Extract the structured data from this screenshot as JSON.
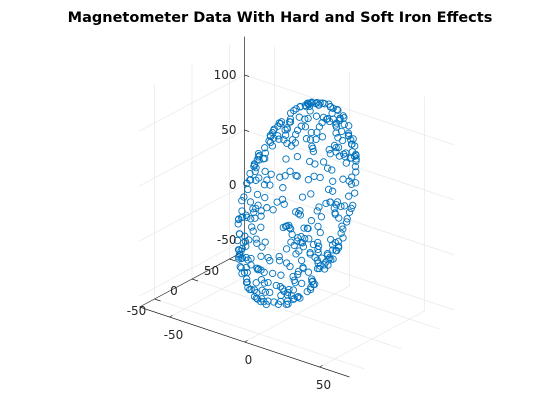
{
  "chart_data": {
    "type": "scatter",
    "projection": "3d",
    "title": "Magnetometer Data With Hard and Soft Iron Effects",
    "xlabel": "",
    "ylabel": "",
    "zlabel": "",
    "xlim": [
      -70,
      70
    ],
    "ylim": [
      -70,
      70
    ],
    "zlim": [
      -60,
      135
    ],
    "xticks": [
      -50,
      0,
      50
    ],
    "yticks": [
      -50,
      0,
      50
    ],
    "zticks": [
      -50,
      0,
      50,
      100
    ],
    "tick_labels": {
      "x": [
        "-50",
        "0",
        "50"
      ],
      "y": [
        "-50",
        "0",
        "50"
      ],
      "z": [
        "-50",
        "0",
        "50",
        "100"
      ]
    },
    "grid": true,
    "marker": "circle",
    "marker_fill": "none",
    "color": "#0072BD",
    "point_count": 400,
    "ellipsoid": {
      "center": [
        0,
        0,
        40
      ],
      "semi_axis_directions": [
        [
          0.7,
          -0.7,
          0.0
        ],
        [
          0.15,
          0.15,
          1.0
        ],
        [
          0.7,
          0.7,
          0.0
        ]
      ],
      "semi_axis_lengths": [
        48,
        92,
        28
      ]
    }
  }
}
